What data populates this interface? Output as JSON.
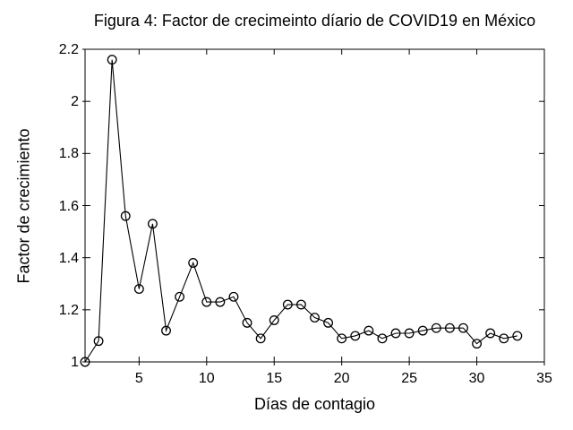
{
  "figure": {
    "background_color": "#ffffff",
    "foreground_color": "#000000"
  },
  "chart_data": {
    "type": "line",
    "title": "Figura 4: Factor de crecimeinto díario de COVID19 en México",
    "xlabel": "Días de contagio",
    "ylabel": "Factor de crecimiento",
    "x": [
      1,
      2,
      3,
      4,
      5,
      6,
      7,
      8,
      9,
      10,
      11,
      12,
      13,
      14,
      15,
      16,
      17,
      18,
      19,
      20,
      21,
      22,
      23,
      24,
      25,
      26,
      27,
      28,
      29,
      30,
      31,
      32,
      33
    ],
    "y": [
      1.0,
      1.08,
      2.16,
      1.56,
      1.28,
      1.53,
      1.12,
      1.25,
      1.38,
      1.23,
      1.23,
      1.25,
      1.15,
      1.09,
      1.16,
      1.22,
      1.22,
      1.17,
      1.15,
      1.09,
      1.1,
      1.12,
      1.09,
      1.11,
      1.11,
      1.12,
      1.13,
      1.13,
      1.13,
      1.07,
      1.11,
      1.09,
      1.1
    ],
    "xlim": [
      1,
      35
    ],
    "ylim": [
      1,
      2.2
    ],
    "xticks": [
      5,
      10,
      15,
      20,
      25,
      30,
      35
    ],
    "xtick_labels": [
      "5",
      "10",
      "15",
      "20",
      "25",
      "30",
      "35"
    ],
    "ytick_values": [
      1,
      1.2,
      1.4,
      1.6,
      1.8,
      2,
      2.2
    ],
    "ytick_labels": [
      "1",
      "1.2",
      "1.4",
      "1.6",
      "1.8",
      "2",
      "2.2"
    ],
    "grid": false,
    "legend": null,
    "marker": "open-circle",
    "series_color": "#000000",
    "boxed_axes": true
  }
}
